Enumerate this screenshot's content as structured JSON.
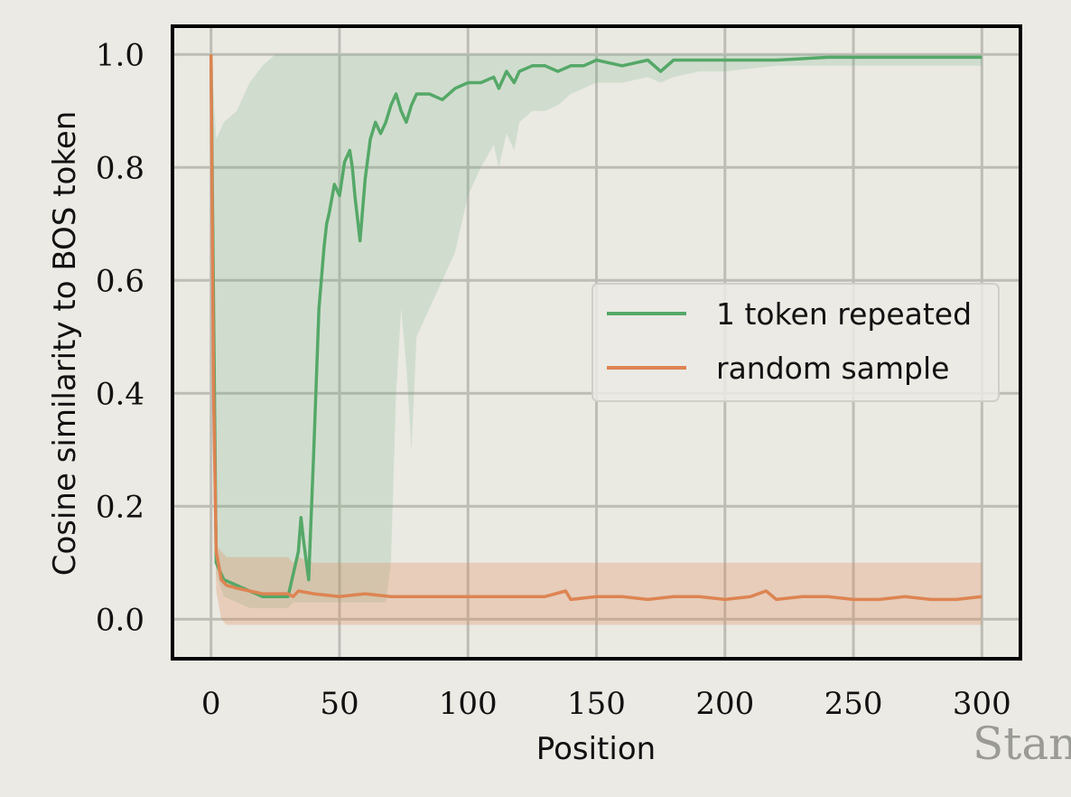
{
  "chart_data": {
    "type": "line",
    "title": "",
    "xlabel": "Position",
    "ylabel": "Cosine similarity to BOS token",
    "xlim": [
      -15,
      315
    ],
    "ylim": [
      -0.07,
      1.05
    ],
    "xticks": [
      0,
      50,
      100,
      150,
      200,
      250,
      300
    ],
    "yticks": [
      0.0,
      0.2,
      0.4,
      0.6,
      0.8,
      1.0
    ],
    "xtick_labels": [
      "0",
      "50",
      "100",
      "150",
      "200",
      "250",
      "300"
    ],
    "ytick_labels": [
      "0.0",
      "0.2",
      "0.4",
      "0.6",
      "0.8",
      "1.0"
    ],
    "grid": true,
    "legend_position": "center-right",
    "series": [
      {
        "name": "1 token repeated",
        "color": "#55a868",
        "x": [
          0,
          2,
          5,
          10,
          15,
          20,
          25,
          30,
          32,
          34,
          35,
          36,
          38,
          40,
          42,
          44,
          45,
          46,
          48,
          50,
          52,
          54,
          55,
          56,
          58,
          60,
          62,
          64,
          66,
          68,
          70,
          72,
          74,
          76,
          78,
          80,
          85,
          90,
          95,
          100,
          105,
          110,
          112,
          115,
          118,
          120,
          125,
          130,
          135,
          140,
          145,
          150,
          160,
          170,
          175,
          180,
          190,
          200,
          220,
          240,
          260,
          280,
          300
        ],
        "y": [
          1.0,
          0.1,
          0.07,
          0.06,
          0.05,
          0.04,
          0.04,
          0.04,
          0.08,
          0.12,
          0.18,
          0.14,
          0.07,
          0.3,
          0.55,
          0.66,
          0.7,
          0.72,
          0.77,
          0.75,
          0.81,
          0.83,
          0.8,
          0.75,
          0.67,
          0.78,
          0.85,
          0.88,
          0.86,
          0.88,
          0.91,
          0.93,
          0.9,
          0.88,
          0.91,
          0.93,
          0.93,
          0.92,
          0.94,
          0.95,
          0.95,
          0.96,
          0.94,
          0.97,
          0.95,
          0.97,
          0.98,
          0.98,
          0.97,
          0.98,
          0.98,
          0.99,
          0.98,
          0.99,
          0.97,
          0.99,
          0.99,
          0.99,
          0.99,
          0.995,
          0.995,
          0.995,
          0.995
        ],
        "band_lower": [
          1.0,
          0.08,
          0.04,
          0.03,
          0.02,
          0.02,
          0.02,
          0.02,
          0.03,
          0.03,
          0.03,
          0.03,
          0.03,
          0.03,
          0.03,
          0.03,
          0.03,
          0.03,
          0.03,
          0.03,
          0.03,
          0.03,
          0.03,
          0.03,
          0.03,
          0.03,
          0.03,
          0.03,
          0.03,
          0.03,
          0.1,
          0.4,
          0.55,
          0.45,
          0.3,
          0.5,
          0.55,
          0.6,
          0.65,
          0.75,
          0.8,
          0.84,
          0.8,
          0.86,
          0.83,
          0.88,
          0.9,
          0.9,
          0.91,
          0.93,
          0.94,
          0.95,
          0.95,
          0.96,
          0.95,
          0.96,
          0.97,
          0.97,
          0.98,
          0.98,
          0.98,
          0.98,
          0.98
        ],
        "band_upper": [
          1.0,
          0.85,
          0.88,
          0.9,
          0.95,
          0.98,
          1.0,
          1.0,
          1.0,
          1.0,
          1.0,
          1.0,
          1.0,
          1.0,
          1.0,
          1.0,
          1.0,
          1.0,
          1.0,
          1.0,
          1.0,
          1.0,
          1.0,
          1.0,
          1.0,
          1.0,
          1.0,
          1.0,
          1.0,
          1.0,
          1.0,
          1.0,
          1.0,
          1.0,
          1.0,
          1.0,
          1.0,
          1.0,
          1.0,
          1.0,
          1.0,
          1.0,
          1.0,
          1.0,
          1.0,
          1.0,
          1.0,
          1.0,
          1.0,
          1.0,
          1.0,
          1.0,
          1.0,
          1.0,
          1.0,
          1.0,
          1.0,
          1.0,
          1.0,
          1.0,
          1.0,
          1.0,
          1.0
        ]
      },
      {
        "name": "random sample",
        "color": "#dd8452",
        "x": [
          0,
          1,
          2,
          4,
          6,
          10,
          15,
          20,
          25,
          30,
          32,
          34,
          40,
          50,
          60,
          70,
          80,
          90,
          100,
          110,
          120,
          130,
          138,
          140,
          150,
          160,
          170,
          180,
          190,
          200,
          210,
          216,
          220,
          230,
          240,
          250,
          260,
          270,
          280,
          290,
          300
        ],
        "y": [
          1.0,
          0.4,
          0.12,
          0.07,
          0.06,
          0.055,
          0.05,
          0.045,
          0.045,
          0.045,
          0.04,
          0.05,
          0.045,
          0.04,
          0.045,
          0.04,
          0.04,
          0.04,
          0.04,
          0.04,
          0.04,
          0.04,
          0.05,
          0.035,
          0.04,
          0.04,
          0.035,
          0.04,
          0.04,
          0.035,
          0.04,
          0.05,
          0.035,
          0.04,
          0.04,
          0.035,
          0.035,
          0.04,
          0.035,
          0.035,
          0.04
        ],
        "band_lower": [
          1.0,
          0.35,
          0.05,
          0.0,
          -0.01,
          -0.01,
          -0.01,
          -0.01,
          -0.01,
          -0.01,
          -0.01,
          -0.01,
          -0.01,
          -0.01,
          -0.01,
          -0.01,
          -0.01,
          -0.01,
          -0.01,
          -0.01,
          -0.01,
          -0.01,
          -0.01,
          -0.01,
          -0.01,
          -0.01,
          -0.01,
          -0.01,
          -0.01,
          -0.01,
          -0.01,
          -0.01,
          -0.01,
          -0.01,
          -0.01,
          -0.01,
          -0.01,
          -0.01,
          -0.01,
          -0.01,
          -0.01
        ],
        "band_upper": [
          1.0,
          0.45,
          0.13,
          0.12,
          0.11,
          0.11,
          0.11,
          0.11,
          0.11,
          0.11,
          0.1,
          0.11,
          0.1,
          0.1,
          0.1,
          0.1,
          0.1,
          0.1,
          0.1,
          0.1,
          0.1,
          0.1,
          0.1,
          0.1,
          0.1,
          0.1,
          0.1,
          0.1,
          0.1,
          0.1,
          0.1,
          0.1,
          0.1,
          0.1,
          0.1,
          0.1,
          0.1,
          0.1,
          0.1,
          0.1,
          0.1
        ]
      }
    ]
  },
  "watermark_text": "Stan"
}
